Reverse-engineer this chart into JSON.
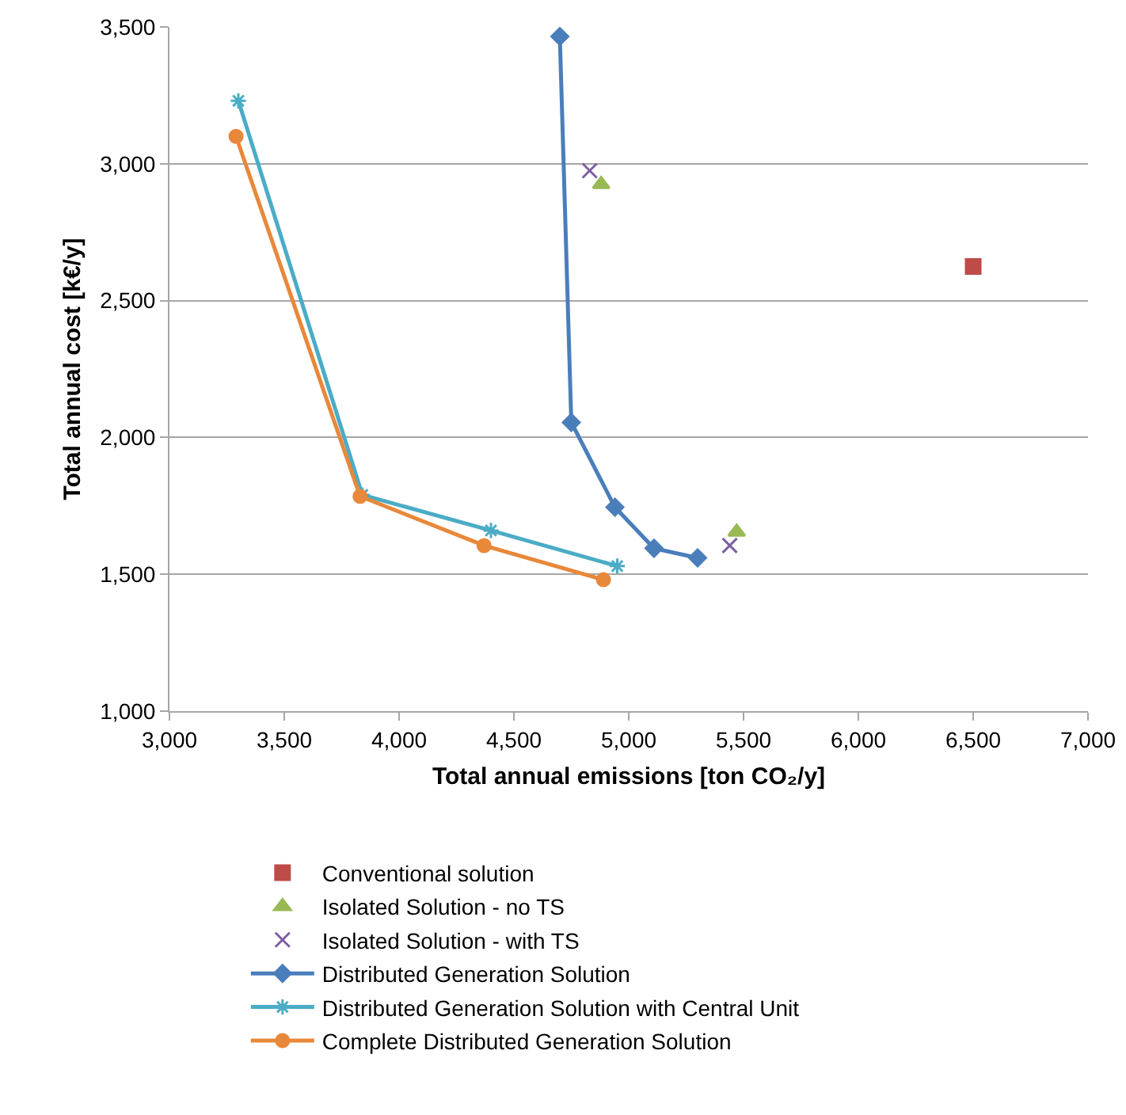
{
  "chart_data": {
    "type": "scatter",
    "xlabel": "Total annual emissions [ton CO₂/y]",
    "ylabel": "Total annual cost [k€/y]",
    "xlim": [
      3000,
      7000
    ],
    "xticks": [
      {
        "value": 3000,
        "label": "3,000"
      },
      {
        "value": 3500,
        "label": "3,500"
      },
      {
        "value": 4000,
        "label": "4,000"
      },
      {
        "value": 4500,
        "label": "4,500"
      },
      {
        "value": 5000,
        "label": "5,000"
      },
      {
        "value": 5500,
        "label": "5,500"
      },
      {
        "value": 6000,
        "label": "6,000"
      },
      {
        "value": 6500,
        "label": "6,500"
      },
      {
        "value": 7000,
        "label": "7,000"
      }
    ],
    "ylim": [
      1000,
      3500
    ],
    "yticks": [
      {
        "value": 1000,
        "label": "1,000"
      },
      {
        "value": 1500,
        "label": "1,500"
      },
      {
        "value": 2000,
        "label": "2,000"
      },
      {
        "value": 2500,
        "label": "2,500"
      },
      {
        "value": 3000,
        "label": "3,000"
      },
      {
        "value": 3500,
        "label": "3,500"
      }
    ],
    "grid": "y",
    "legend": "bottom",
    "series": [
      {
        "name": "Conventional solution",
        "marker": "square",
        "color": "#be4b48",
        "x": [
          6500
        ],
        "values": [
          2625
        ]
      },
      {
        "name": "Isolated Solution - no TS",
        "marker": "triangle",
        "color": "#98b954",
        "x": [
          4880,
          5470
        ],
        "values": [
          2925,
          1655
        ]
      },
      {
        "name": "Isolated Solution - with TS",
        "marker": "cross",
        "color": "#7d60a0",
        "x": [
          4830,
          5440
        ],
        "values": [
          2975,
          1605
        ]
      },
      {
        "name": "Distributed Generation Solution",
        "type": "line",
        "marker": "diamond",
        "color": "#4a7ebb",
        "x": [
          4700,
          4750,
          4940,
          5110,
          5300
        ],
        "values": [
          3465,
          2055,
          1745,
          1595,
          1560
        ]
      },
      {
        "name": "Distributed Generation Solution with Central Unit",
        "type": "line",
        "marker": "cross",
        "color": "#4bacc6",
        "x": [
          3300,
          3840,
          4400,
          4950
        ],
        "values": [
          3230,
          1790,
          1660,
          1530
        ]
      },
      {
        "name": "Complete Distributed Generation Solution",
        "type": "line",
        "marker": "circle",
        "color": "#e8883a",
        "x": [
          3290,
          3830,
          4370,
          4890
        ],
        "values": [
          3100,
          1785,
          1605,
          1480
        ]
      }
    ]
  }
}
